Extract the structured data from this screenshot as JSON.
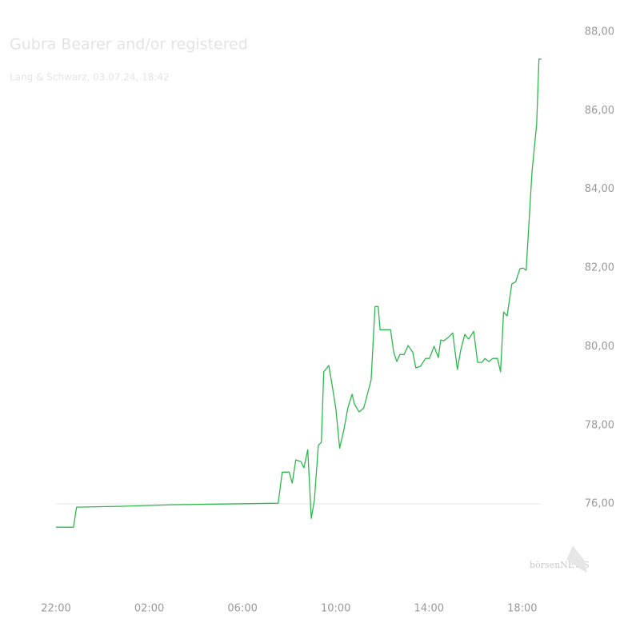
{
  "chart_data": {
    "type": "line",
    "title": "Gubra Bearer and/or registered",
    "subtitle": "Lang & Schwarz, 03.07.24, 18:42",
    "watermark": "börsenNEWS",
    "x": [
      "22:00",
      "22:45",
      "22:53",
      "00:45",
      "03:01",
      "07:32",
      "07:42",
      "08:00",
      "08:08",
      "08:17",
      "08:30",
      "08:38",
      "08:48",
      "08:57",
      "09:05",
      "09:15",
      "09:23",
      "09:29",
      "09:42",
      "09:50",
      "10:00",
      "10:10",
      "10:21",
      "10:31",
      "10:42",
      "10:48",
      "11:00",
      "11:12",
      "11:23",
      "11:31",
      "11:41",
      "11:49",
      "11:54",
      "12:21",
      "12:29",
      "12:37",
      "12:45",
      "12:56",
      "13:06",
      "13:18",
      "13:26",
      "13:38",
      "13:51",
      "14:01",
      "14:13",
      "14:24",
      "14:30",
      "14:38",
      "14:49",
      "15:01",
      "15:13",
      "15:22",
      "15:32",
      "15:42",
      "15:55",
      "16:05",
      "16:16",
      "16:24",
      "16:34",
      "16:44",
      "16:56",
      "17:04",
      "17:12",
      "17:21",
      "17:33",
      "17:43",
      "17:54",
      "18:02",
      "18:10",
      "18:25",
      "18:37",
      "18:43",
      "18:49"
    ],
    "series": [
      {
        "color": "#2db84d",
        "values": [
          75.41,
          75.41,
          75.92,
          75.94,
          75.98,
          76.02,
          76.81,
          76.81,
          76.53,
          77.12,
          77.08,
          76.92,
          77.38,
          75.63,
          76.1,
          77.49,
          77.57,
          79.36,
          79.52,
          79.05,
          78.44,
          77.42,
          77.89,
          78.44,
          78.79,
          78.54,
          78.34,
          78.44,
          78.85,
          79.15,
          81.02,
          81.02,
          80.43,
          80.43,
          79.86,
          79.62,
          79.8,
          79.8,
          80.03,
          79.86,
          79.46,
          79.5,
          79.7,
          79.7,
          80.01,
          79.72,
          80.17,
          80.15,
          80.23,
          80.35,
          79.42,
          79.93,
          80.31,
          80.19,
          80.39,
          79.6,
          79.6,
          79.7,
          79.62,
          79.7,
          79.7,
          79.36,
          80.88,
          80.78,
          81.59,
          81.65,
          81.98,
          82.0,
          81.94,
          84.44,
          85.66,
          87.31,
          87.31
        ]
      }
    ],
    "reference_value": 76,
    "xlim": [
      "22:00",
      "19:00"
    ],
    "xticks": [
      "22:00",
      "02:00",
      "06:00",
      "10:00",
      "14:00",
      "18:00"
    ],
    "ylim": [
      74,
      88
    ],
    "yticks": [
      {
        "value": 76,
        "label": "76,00"
      },
      {
        "value": 78,
        "label": "78,00"
      },
      {
        "value": 80,
        "label": "80,00"
      },
      {
        "value": 82,
        "label": "82,00"
      },
      {
        "value": 84,
        "label": "84,00"
      },
      {
        "value": 86,
        "label": "86,00"
      },
      {
        "value": 88,
        "label": "88,00"
      }
    ]
  }
}
